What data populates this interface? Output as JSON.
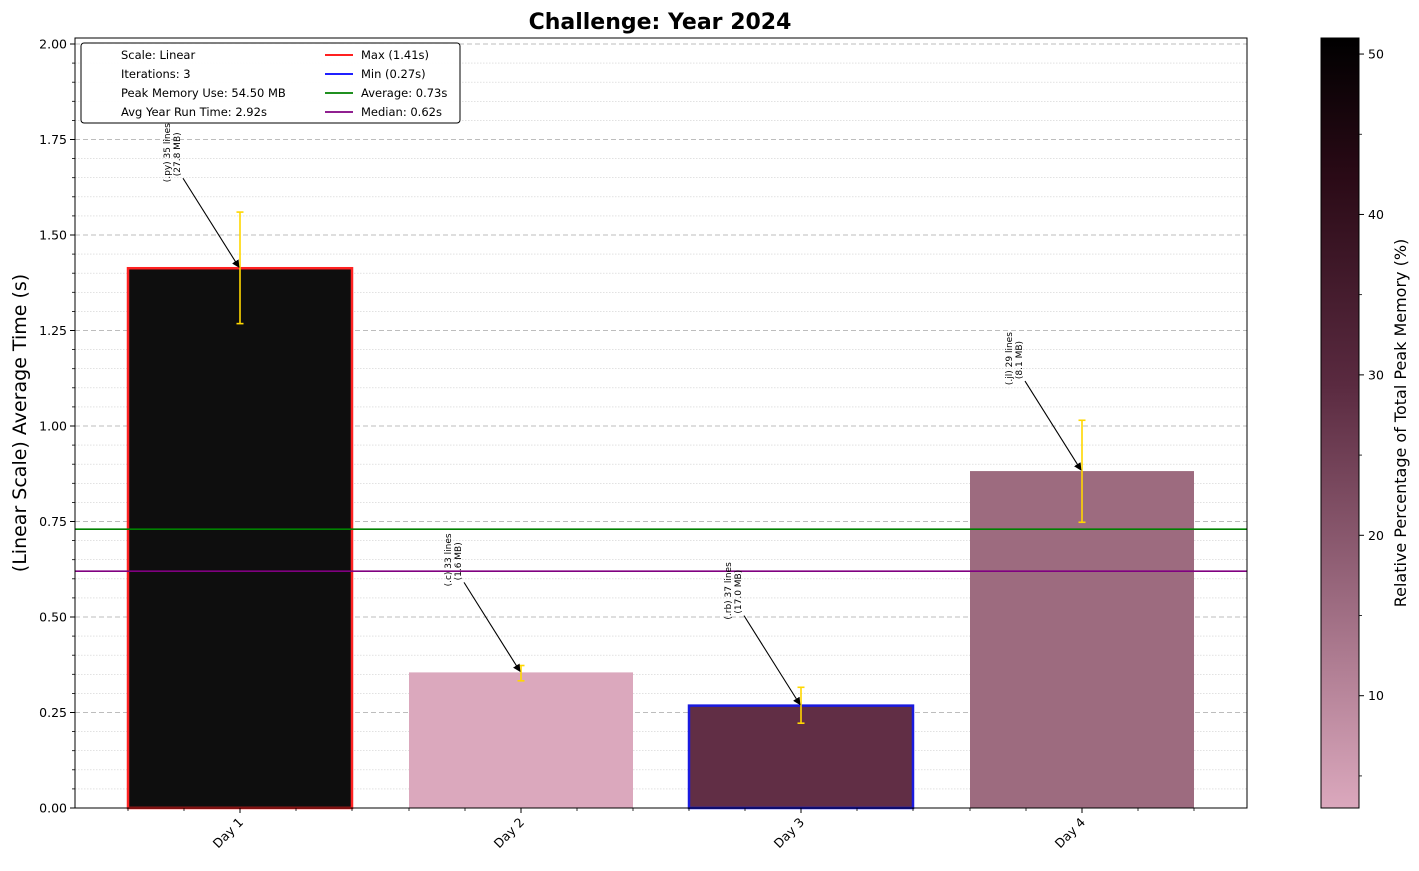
{
  "chart_data": {
    "type": "bar",
    "title": "Challenge: Year 2024",
    "xlabel": "",
    "ylabel": "(Linear Scale) Average Time (s)",
    "categories": [
      "Day 1",
      "Day 2",
      "Day 3",
      "Day 4"
    ],
    "values": [
      1.413,
      0.355,
      0.268,
      0.882
    ],
    "error_low": [
      1.268,
      0.333,
      0.222,
      0.748
    ],
    "error_high": [
      1.56,
      0.373,
      0.316,
      1.015
    ],
    "memory_pct": [
      51.0,
      2.9,
      31.2,
      14.9
    ],
    "bar_colors": [
      "#0e0e0e",
      "#dba8bd",
      "#612e45",
      "#9d6b7f"
    ],
    "edge_colors": [
      "#ff2222",
      null,
      "#1a1adf",
      null
    ],
    "annotations": [
      {
        "line1": "(.py) 35 lines",
        "line2": "(27.8 MB)"
      },
      {
        "line1": "(.c) 33 lines",
        "line2": "(1.6 MB)"
      },
      {
        "line1": "(.rb) 37 lines",
        "line2": "(17.0 MB)"
      },
      {
        "line1": "(.jl) 29 lines",
        "line2": "(8.1 MB)"
      }
    ],
    "ylim": [
      0,
      2.0
    ],
    "yticks": [
      "0.00",
      "0.25",
      "0.50",
      "0.75",
      "1.00",
      "1.25",
      "1.50",
      "1.75",
      "2.00"
    ],
    "grid": true,
    "reference_lines": {
      "average": 0.73,
      "median": 0.62
    },
    "legend": {
      "placement": "upper-left",
      "text_entries": [
        "Scale: Linear",
        "Iterations: 3",
        "Peak Memory Use: 54.50 MB",
        "Avg Year Run Time: 2.92s"
      ],
      "line_entries": [
        {
          "label": "Max (1.41s)",
          "color": "#ff0000"
        },
        {
          "label": "Min (0.27s)",
          "color": "#0000ff"
        },
        {
          "label": "Average: 0.73s",
          "color": "#008000"
        },
        {
          "label": "Median: 0.62s",
          "color": "#800080"
        }
      ]
    },
    "colorbar": {
      "label": "Relative Percentage of Total Peak Memory (%)",
      "range": [
        3,
        51
      ],
      "ticks": [
        "10",
        "20",
        "30",
        "40",
        "50"
      ],
      "colors": {
        "low": "#dba8bd",
        "mid": "#5a2a40",
        "high": "#000000"
      }
    },
    "colors": {
      "error_bar": "#ffd700",
      "average": "#008000",
      "median": "#800080"
    }
  }
}
